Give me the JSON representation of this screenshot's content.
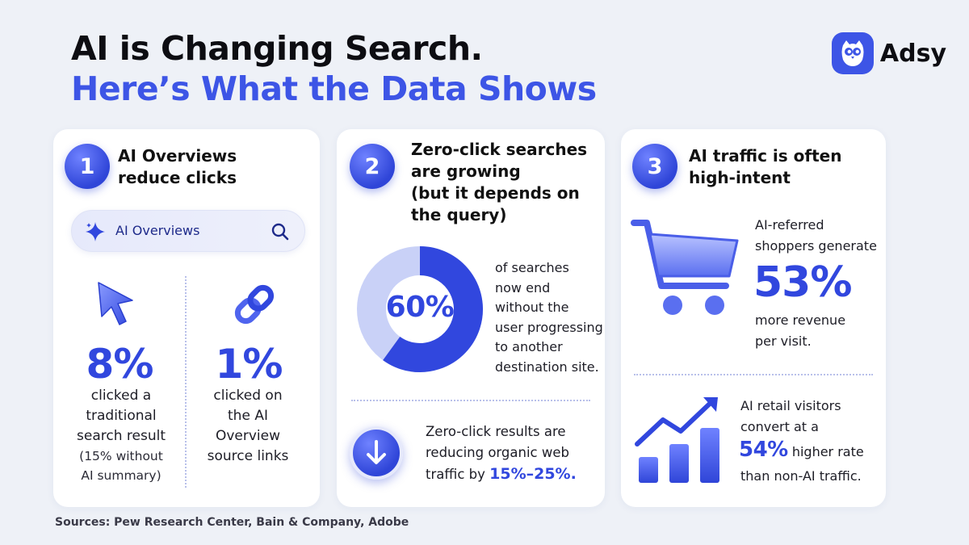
{
  "header": {
    "title_line1": "AI is Changing Search.",
    "title_line2": "Here’s What the Data Shows",
    "brand_name": "Adsy"
  },
  "card1": {
    "number": "1",
    "heading_line1": "AI Overviews",
    "heading_line2": "reduce clicks",
    "search_label": "AI Overviews",
    "stat_left_value": "8%",
    "stat_left_desc": [
      "clicked a",
      "traditional",
      "search result"
    ],
    "stat_left_note": [
      "(15% without",
      "AI summary)"
    ],
    "stat_right_value": "1%",
    "stat_right_desc": [
      "clicked on",
      "the AI",
      "Overview",
      "source links"
    ]
  },
  "card2": {
    "number": "2",
    "heading": [
      "Zero-click searches",
      "are growing",
      "(but it depends on",
      "the query)"
    ],
    "donut_value": "60%",
    "donut_fraction": 0.6,
    "donut_desc": [
      "of searches",
      "now end",
      "without the",
      "user progressing",
      "to another",
      "destination site."
    ],
    "bottom_desc": [
      "Zero-click results are",
      "reducing organic web",
      "traffic by "
    ],
    "bottom_highlight": "15%–25%."
  },
  "card3": {
    "number": "3",
    "heading_line1": "AI traffic is often",
    "heading_line2": "high-intent",
    "top_desc": [
      "AI-referred",
      "shoppers generate"
    ],
    "top_value": "53%",
    "top_desc_after": [
      "more revenue",
      "per visit."
    ],
    "bottom_desc1": [
      "AI retail visitors",
      "convert at a"
    ],
    "bottom_value": "54%",
    "bottom_value_suffix": " higher rate",
    "bottom_desc2": "than non-AI traffic."
  },
  "footer": {
    "sources": "Sources: Pew Research Center, Bain & Company, Adobe"
  },
  "colors": {
    "accent": "#3147de",
    "accent_light": "#c9d1f7",
    "background": "#eef1f7"
  }
}
